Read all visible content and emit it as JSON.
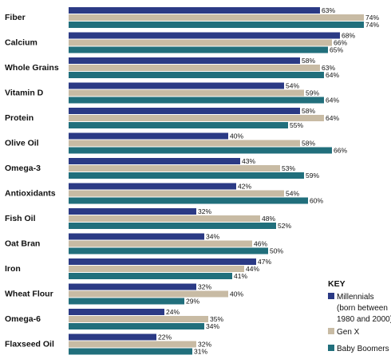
{
  "chart_data": {
    "type": "bar",
    "orientation": "horizontal",
    "categories": [
      "Fiber",
      "Calcium",
      "Whole Grains",
      "Vitamin D",
      "Protein",
      "Olive Oil",
      "Omega-3",
      "Antioxidants",
      "Fish Oil",
      "Oat Bran",
      "Iron",
      "Wheat Flour",
      "Omega-6",
      "Flaxseed Oil"
    ],
    "series": [
      {
        "name": "Millennials",
        "values": [
          63,
          68,
          58,
          54,
          58,
          40,
          43,
          42,
          32,
          34,
          47,
          32,
          24,
          22
        ]
      },
      {
        "name": "Gen X",
        "values": [
          74,
          66,
          63,
          59,
          64,
          58,
          53,
          54,
          48,
          46,
          44,
          40,
          35,
          32
        ]
      },
      {
        "name": "Baby Boomers",
        "values": [
          74,
          65,
          64,
          64,
          55,
          66,
          59,
          60,
          52,
          50,
          41,
          29,
          34,
          31
        ]
      }
    ],
    "value_suffix": "%",
    "xlim": [
      0,
      100
    ],
    "grid": false,
    "legend": {
      "title": "KEY",
      "position": "bottom-right",
      "entries": [
        {
          "lines": [
            "Millennials",
            "(born between",
            "1980 and 2000)"
          ]
        },
        {
          "lines": [
            "Gen X"
          ]
        },
        {
          "lines": [
            "Baby Boomers"
          ]
        }
      ]
    },
    "colors": [
      "#2b3a85",
      "#c8bba4",
      "#216f7c"
    ]
  }
}
